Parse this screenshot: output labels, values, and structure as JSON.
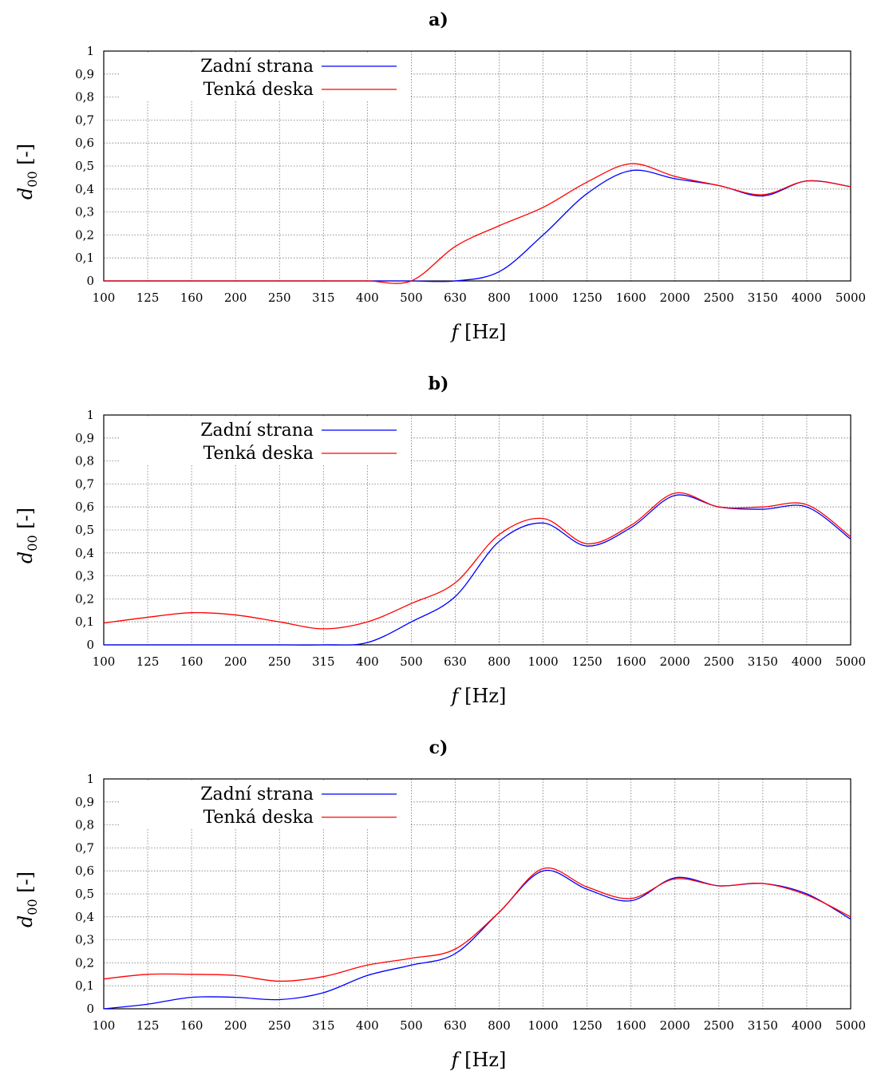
{
  "chart_data": [
    {
      "type": "line",
      "title": "a)",
      "ylabel_symbol": "d",
      "ylabel_sub": "00",
      "ylabel_unit": "[-]",
      "xlabel_symbol": "f",
      "xlabel_unit": "[Hz]",
      "categories": [
        "100",
        "125",
        "160",
        "200",
        "250",
        "315",
        "400",
        "500",
        "630",
        "800",
        "1000",
        "1250",
        "1600",
        "2000",
        "2500",
        "3150",
        "4000",
        "5000"
      ],
      "yticks": [
        "0",
        "0,1",
        "0,2",
        "0,3",
        "0,4",
        "0,5",
        "0,6",
        "0,7",
        "0,8",
        "0,9",
        "1"
      ],
      "ylim": [
        0,
        1
      ],
      "grid": true,
      "legend_position": "top-left",
      "series": [
        {
          "name": "Zadní strana",
          "color": "#0000ff",
          "values": [
            0,
            0,
            0,
            0,
            0,
            0,
            0,
            0,
            0,
            0.04,
            0.2,
            0.38,
            0.48,
            0.445,
            0.415,
            0.37,
            0.435,
            0.41
          ]
        },
        {
          "name": "Tenká deska",
          "color": "#ff0000",
          "values": [
            0,
            0,
            0,
            0,
            0,
            0,
            0,
            0,
            0.15,
            0.24,
            0.32,
            0.43,
            0.51,
            0.455,
            0.415,
            0.375,
            0.435,
            0.41
          ]
        }
      ]
    },
    {
      "type": "line",
      "title": "b)",
      "ylabel_symbol": "d",
      "ylabel_sub": "00",
      "ylabel_unit": "[-]",
      "xlabel_symbol": "f",
      "xlabel_unit": "[Hz]",
      "categories": [
        "100",
        "125",
        "160",
        "200",
        "250",
        "315",
        "400",
        "500",
        "630",
        "800",
        "1000",
        "1250",
        "1600",
        "2000",
        "2500",
        "3150",
        "4000",
        "5000"
      ],
      "yticks": [
        "0",
        "0,1",
        "0,2",
        "0,3",
        "0,4",
        "0,5",
        "0,6",
        "0,7",
        "0,8",
        "0,9",
        "1"
      ],
      "ylim": [
        0,
        1
      ],
      "grid": true,
      "legend_position": "top-left",
      "series": [
        {
          "name": "Zadní strana",
          "color": "#0000ff",
          "values": [
            0,
            0,
            0,
            0,
            0,
            0,
            0.01,
            0.1,
            0.21,
            0.45,
            0.53,
            0.43,
            0.51,
            0.65,
            0.6,
            0.59,
            0.6,
            0.46
          ]
        },
        {
          "name": "Tenká deska",
          "color": "#ff0000",
          "values": [
            0.095,
            0.12,
            0.14,
            0.13,
            0.1,
            0.07,
            0.1,
            0.18,
            0.27,
            0.48,
            0.55,
            0.44,
            0.52,
            0.66,
            0.6,
            0.6,
            0.61,
            0.47
          ]
        }
      ]
    },
    {
      "type": "line",
      "title": "c)",
      "ylabel_symbol": "d",
      "ylabel_sub": "00",
      "ylabel_unit": "[-]",
      "xlabel_symbol": "f",
      "xlabel_unit": "[Hz]",
      "categories": [
        "100",
        "125",
        "160",
        "200",
        "250",
        "315",
        "400",
        "500",
        "630",
        "800",
        "1000",
        "1250",
        "1600",
        "2000",
        "2500",
        "3150",
        "4000",
        "5000"
      ],
      "yticks": [
        "0",
        "0,1",
        "0,2",
        "0,3",
        "0,4",
        "0,5",
        "0,6",
        "0,7",
        "0,8",
        "0,9",
        "1"
      ],
      "ylim": [
        0,
        1
      ],
      "grid": true,
      "legend_position": "top-left",
      "series": [
        {
          "name": "Zadní strana",
          "color": "#0000ff",
          "values": [
            0,
            0.02,
            0.05,
            0.05,
            0.04,
            0.07,
            0.145,
            0.19,
            0.24,
            0.42,
            0.6,
            0.52,
            0.47,
            0.57,
            0.535,
            0.545,
            0.5,
            0.39
          ]
        },
        {
          "name": "Tenká deska",
          "color": "#ff0000",
          "values": [
            0.13,
            0.15,
            0.15,
            0.145,
            0.12,
            0.14,
            0.19,
            0.22,
            0.26,
            0.42,
            0.61,
            0.53,
            0.48,
            0.565,
            0.535,
            0.545,
            0.495,
            0.4
          ]
        }
      ]
    }
  ]
}
